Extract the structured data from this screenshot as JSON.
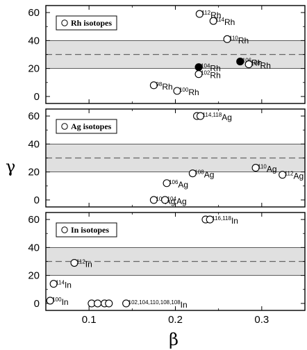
{
  "chart_data": {
    "type": "scatter",
    "xlabel": "β",
    "ylabel": "γ",
    "xlim": [
      0.05,
      0.35
    ],
    "ylim": [
      -5,
      65
    ],
    "x_ticks": [
      0.1,
      0.2,
      0.3
    ],
    "x_tick_labels": [
      "0.1",
      "0.2",
      "0.3"
    ],
    "y_ticks": [
      0,
      20,
      40,
      60
    ],
    "y_tick_labels": [
      "0",
      "20",
      "40",
      "60"
    ],
    "band": [
      20,
      40
    ],
    "dashed_line": 30,
    "band_color": "#e0e0e0",
    "panels": [
      {
        "legend": "Rh isotopes",
        "points": [
          {
            "x": 0.175,
            "y": 8,
            "filled": false,
            "sup": "98",
            "main": "Rh",
            "color": "#000000"
          },
          {
            "x": 0.202,
            "y": 4,
            "filled": false,
            "sup": "100",
            "main": "Rh",
            "color": "#000000"
          },
          {
            "x": 0.227,
            "y": 16,
            "filled": false,
            "sup": "102",
            "main": "Rh",
            "color": "#000000"
          },
          {
            "x": 0.227,
            "y": 21,
            "filled": true,
            "sup": "104",
            "main": "Rh",
            "color": "#555555"
          },
          {
            "x": 0.275,
            "y": 25,
            "filled": true,
            "sup": "106",
            "main": "Rh",
            "color": "#888888"
          },
          {
            "x": 0.285,
            "y": 23,
            "filled": false,
            "sup": "108",
            "main": "Rh",
            "color": "#000000"
          },
          {
            "x": 0.26,
            "y": 41,
            "filled": false,
            "sup": "110",
            "main": "Rh",
            "color": "#000000"
          },
          {
            "x": 0.228,
            "y": 59,
            "filled": false,
            "sup": "112",
            "main": "Rh",
            "color": "#000000"
          },
          {
            "x": 0.244,
            "y": 54,
            "filled": false,
            "sup": "114",
            "main": "Rh",
            "color": "#000000"
          }
        ]
      },
      {
        "legend": "Ag isotopes",
        "points": [
          {
            "x": 0.175,
            "y": 0,
            "filled": false,
            "sup": "102",
            "main": "Ag",
            "color": "#000000"
          },
          {
            "x": 0.188,
            "y": 0,
            "filled": false,
            "sup": "104",
            "main": "Ag",
            "color": "#000000"
          },
          {
            "x": 0.19,
            "y": 12,
            "filled": false,
            "sup": "106",
            "main": "Ag",
            "color": "#000000"
          },
          {
            "x": 0.22,
            "y": 19,
            "filled": false,
            "sup": "108",
            "main": "Ag",
            "color": "#000000"
          },
          {
            "x": 0.293,
            "y": 23,
            "filled": false,
            "sup": "110",
            "main": "Ag",
            "color": "#000000"
          },
          {
            "x": 0.324,
            "y": 18,
            "filled": false,
            "sup": "112",
            "main": "Ag",
            "color": "#000000"
          },
          {
            "x": 0.225,
            "y": 60,
            "filled": false,
            "sup": "",
            "main": "",
            "color": "#000000"
          },
          {
            "x": 0.229,
            "y": 60,
            "filled": false,
            "sup": "114,118",
            "main": "Ag",
            "color": "#000000"
          }
        ]
      },
      {
        "legend": "In isotopes",
        "points": [
          {
            "x": 0.055,
            "y": 2,
            "filled": false,
            "sup": "100",
            "main": "In",
            "color": "#000000"
          },
          {
            "x": 0.059,
            "y": 14,
            "filled": false,
            "sup": "114",
            "main": "In",
            "color": "#000000"
          },
          {
            "x": 0.083,
            "y": 29,
            "filled": false,
            "sup": "112",
            "main": "In",
            "color": "#000000"
          },
          {
            "x": 0.103,
            "y": 0,
            "filled": false,
            "sup": "",
            "main": "",
            "color": "#000000"
          },
          {
            "x": 0.11,
            "y": 0,
            "filled": false,
            "sup": "",
            "main": "",
            "color": "#000000"
          },
          {
            "x": 0.118,
            "y": 0,
            "filled": false,
            "sup": "",
            "main": "",
            "color": "#000000"
          },
          {
            "x": 0.123,
            "y": 0,
            "filled": false,
            "sup": "",
            "main": "",
            "color": "#000000"
          },
          {
            "x": 0.143,
            "y": 0,
            "filled": false,
            "sup": "102,104,110,108,108",
            "main": "In",
            "color": "#000000"
          },
          {
            "x": 0.235,
            "y": 60,
            "filled": false,
            "sup": "",
            "main": "",
            "color": "#000000"
          },
          {
            "x": 0.24,
            "y": 60,
            "filled": false,
            "sup": "116,118",
            "main": "In",
            "color": "#000000"
          }
        ]
      }
    ]
  }
}
